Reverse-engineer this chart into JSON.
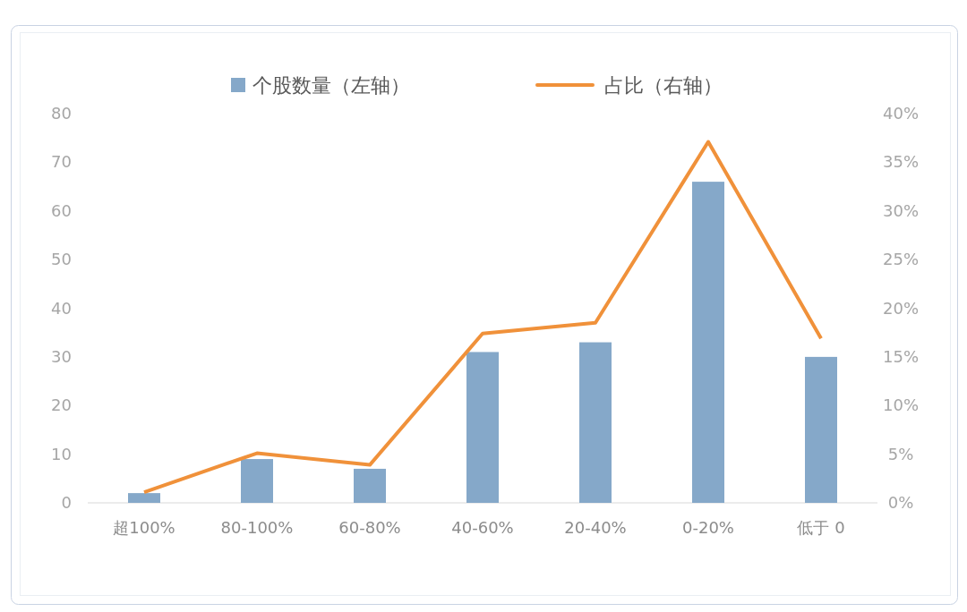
{
  "chart_data": {
    "type": "bar",
    "categories": [
      "超100%",
      "80-100%",
      "60-80%",
      "40-60%",
      "20-40%",
      "0-20%",
      "低于 0"
    ],
    "series": [
      {
        "name": "个股数量（左轴）",
        "color": "#85a8c9",
        "values": [
          2,
          9,
          7,
          31,
          33,
          66,
          30
        ]
      },
      {
        "name": "占比（右轴）",
        "type": "line",
        "axis": "y2",
        "color": "#f0913a",
        "values": [
          1.1,
          5.1,
          3.9,
          17.4,
          18.5,
          37.1,
          16.9
        ]
      }
    ],
    "ylim": [
      0,
      80
    ],
    "yticks": [
      0,
      10,
      20,
      30,
      40,
      50,
      60,
      70,
      80
    ],
    "y2lim": [
      0,
      40
    ],
    "y2ticks": [
      {
        "value": 0,
        "label": "0%"
      },
      {
        "value": 5,
        "label": "5%"
      },
      {
        "value": 10,
        "label": "10%"
      },
      {
        "value": 15,
        "label": "15%"
      },
      {
        "value": 20,
        "label": "20%"
      },
      {
        "value": 25,
        "label": "25%"
      },
      {
        "value": 30,
        "label": "30%"
      },
      {
        "value": 35,
        "label": "35%"
      },
      {
        "value": 40,
        "label": "40%"
      }
    ],
    "legend": "top",
    "marker": "none",
    "line_style": "solid"
  }
}
